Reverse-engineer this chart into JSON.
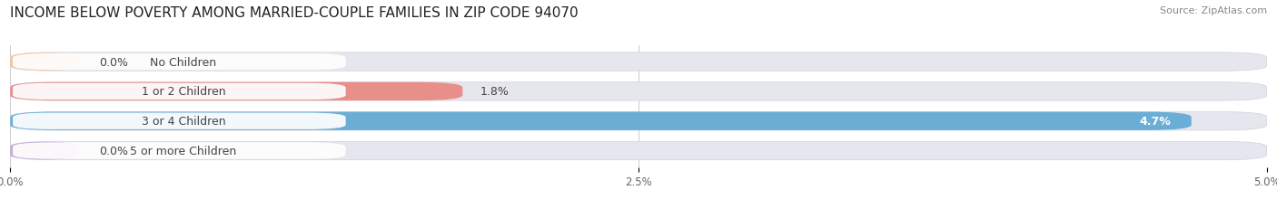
{
  "title": "INCOME BELOW POVERTY AMONG MARRIED-COUPLE FAMILIES IN ZIP CODE 94070",
  "source": "Source: ZipAtlas.com",
  "categories": [
    "No Children",
    "1 or 2 Children",
    "3 or 4 Children",
    "5 or more Children"
  ],
  "values": [
    0.0,
    1.8,
    4.7,
    0.0
  ],
  "bar_colors": [
    "#f5c5a0",
    "#e88f8a",
    "#6aaed6",
    "#c2aed6"
  ],
  "bar_bg_color": "#e6e6ee",
  "bar_border_color": "#d0d0dc",
  "xlim": [
    0.0,
    5.0
  ],
  "xticks": [
    0.0,
    2.5,
    5.0
  ],
  "xtick_labels": [
    "0.0%",
    "2.5%",
    "5.0%"
  ],
  "label_fontsize": 9,
  "title_fontsize": 11,
  "source_fontsize": 8,
  "value_fontsize": 9,
  "background_color": "#ffffff",
  "grid_color": "#cccccc",
  "text_color": "#444444"
}
